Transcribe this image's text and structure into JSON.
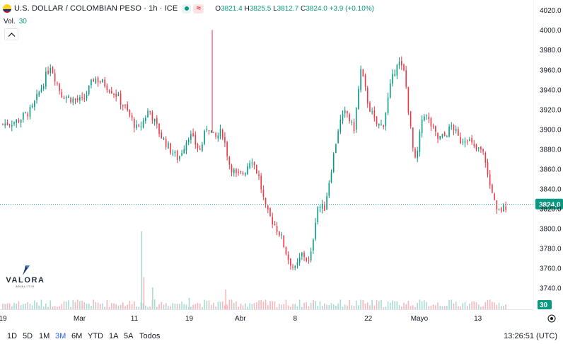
{
  "header": {
    "symbol": "U.S. DOLLAR / COLOMBIAN PESO · 1h · ICE",
    "approx_symbol": "≈",
    "ohlc": {
      "o_label": "O",
      "o": "3821.4",
      "h_label": "H",
      "h": "3825.5",
      "l_label": "L",
      "l": "3812.7",
      "c_label": "C",
      "c": "3824.0",
      "change": "+3.9 (+0.10%)"
    },
    "volume_label": "Vol.",
    "volume_value": "30"
  },
  "colors": {
    "up": "#089981",
    "down": "#f23645",
    "up_volume": "#a8dcd2",
    "down_volume": "#f7b7bb",
    "last_price_badge": "#089981"
  },
  "chart_data": {
    "type": "candlestick",
    "interval": "1h",
    "y_ticks": [
      4020.0,
      4000.0,
      3980.0,
      3960.0,
      3940.0,
      3920.0,
      3900.0,
      3880.0,
      3860.0,
      3840.0,
      3820.0,
      3800.0,
      3780.0,
      3760.0,
      3740.0
    ],
    "y_tick_labels": [
      "4020.0",
      "4000.0",
      "3980.0",
      "3960.0",
      "3940.0",
      "3920.0",
      "3900.0",
      "3880.0",
      "3860.0",
      "3840.0",
      "3820.0",
      "3800.0",
      "3780.0",
      "3760.0",
      "3740.0"
    ],
    "ylim": [
      3727,
      4028
    ],
    "x_labels": [
      "19",
      "Mar",
      "11",
      "19",
      "Abr",
      "8",
      "22",
      "Mayo",
      "13"
    ],
    "last_price": 3824.0,
    "last_price_label": "3824.0",
    "last_volume_label": "30",
    "x_range": [
      0,
      144
    ],
    "x_label_positions": [
      0,
      21,
      36,
      51,
      65,
      80,
      100,
      114,
      130
    ],
    "close_path": [
      [
        0,
        3905
      ],
      [
        4,
        3908
      ],
      [
        8,
        3920
      ],
      [
        11,
        3946
      ],
      [
        13,
        3965
      ],
      [
        16,
        3935
      ],
      [
        19,
        3930
      ],
      [
        22,
        3928
      ],
      [
        25,
        3952
      ],
      [
        28,
        3945
      ],
      [
        31,
        3935
      ],
      [
        34,
        3918
      ],
      [
        37,
        3898
      ],
      [
        40,
        3920
      ],
      [
        43,
        3895
      ],
      [
        46,
        3878
      ],
      [
        48,
        3870
      ],
      [
        51,
        3895
      ],
      [
        54,
        3878
      ],
      [
        56,
        3905
      ],
      [
        58,
        3890
      ],
      [
        60,
        3898
      ],
      [
        62,
        3865
      ],
      [
        64,
        3852
      ],
      [
        66,
        3856
      ],
      [
        68,
        3872
      ],
      [
        70,
        3852
      ],
      [
        72,
        3818
      ],
      [
        74,
        3806
      ],
      [
        76,
        3793
      ],
      [
        78,
        3770
      ],
      [
        80,
        3758
      ],
      [
        82,
        3775
      ],
      [
        84,
        3764
      ],
      [
        86,
        3822
      ],
      [
        88,
        3820
      ],
      [
        90,
        3863
      ],
      [
        92,
        3905
      ],
      [
        94,
        3918
      ],
      [
        96,
        3898
      ],
      [
        98,
        3960
      ],
      [
        100,
        3925
      ],
      [
        102,
        3905
      ],
      [
        104,
        3903
      ],
      [
        106,
        3942
      ],
      [
        108,
        3970
      ],
      [
        110,
        3955
      ],
      [
        112,
        3885
      ],
      [
        113,
        3864
      ],
      [
        115,
        3918
      ],
      [
        117,
        3905
      ],
      [
        119,
        3890
      ],
      [
        121,
        3893
      ],
      [
        123,
        3904
      ],
      [
        125,
        3888
      ],
      [
        127,
        3892
      ],
      [
        129,
        3880
      ],
      [
        131,
        3878
      ],
      [
        132,
        3870
      ],
      [
        133,
        3845
      ],
      [
        134,
        3838
      ],
      [
        135,
        3815
      ],
      [
        137,
        3820
      ],
      [
        138,
        3824
      ]
    ],
    "volume_range": [
      0,
      170
    ],
    "volume_spikes": [
      [
        38,
        150
      ],
      [
        38.6,
        62
      ],
      [
        41,
        42
      ],
      [
        61,
        38
      ],
      [
        51,
        22
      ],
      [
        85,
        18
      ]
    ]
  },
  "time_ranges": [
    "1D",
    "5D",
    "1M",
    "3M",
    "6M",
    "YTD",
    "1A",
    "5A",
    "Todos"
  ],
  "active_time_range": "3M",
  "clock": "13:26:51 (UTC)",
  "logo": {
    "name": "VALORA",
    "tagline": "ANALITIK"
  }
}
